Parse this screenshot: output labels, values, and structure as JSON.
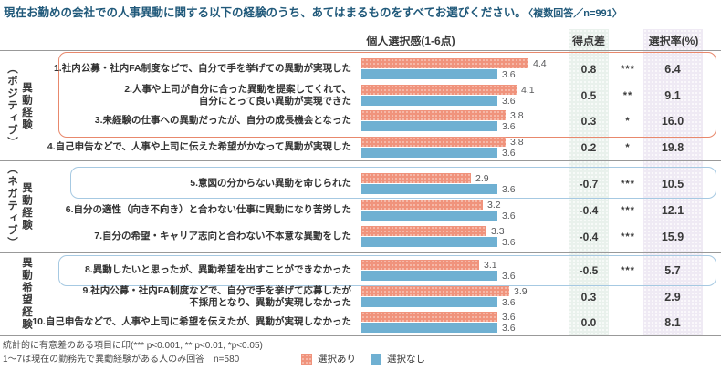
{
  "title": {
    "main": "現在お勤めの会社での人事異動に関する以下の経験のうち、あてはまるものをすべてお選びください。",
    "note": "〈複数回答／n=991〉"
  },
  "headers": {
    "score": "個人選択感(1-6点)",
    "diff": "得点差",
    "rate": "選択率(%)"
  },
  "groups": [
    {
      "name": "異動経験",
      "qualifier": "（ポジティブ）"
    },
    {
      "name": "異動経験",
      "qualifier": "（ネガティブ）"
    },
    {
      "name": "異動希望経験",
      "qualifier": ""
    }
  ],
  "rows": [
    {
      "label": "1.社内公募・社内FA制度などで、自分で手を挙げての異動が実現した",
      "selected": 4.4,
      "not_selected": 3.6,
      "diff": "0.8",
      "stars": "***",
      "rate": "6.4"
    },
    {
      "label": "2.人事や上司が自分に合った異動を提案してくれて、",
      "label2": "自分にとって良い異動が実現できた",
      "selected": 4.1,
      "not_selected": 3.6,
      "diff": "0.5",
      "stars": "**",
      "rate": "9.1"
    },
    {
      "label": "3.未経験の仕事への異動だったが、自分の成長機会となった",
      "selected": 3.8,
      "not_selected": 3.6,
      "diff": "0.3",
      "stars": "*",
      "rate": "16.0"
    },
    {
      "label": "4.自己申告などで、人事や上司に伝えた希望がかなって異動が実現した",
      "selected": 3.8,
      "not_selected": 3.6,
      "diff": "0.2",
      "stars": "*",
      "rate": "19.8"
    },
    {
      "label": "5.意図の分からない異動を命じられた",
      "selected": 2.9,
      "not_selected": 3.6,
      "diff": "-0.7",
      "stars": "***",
      "rate": "10.5"
    },
    {
      "label": "6.自分の適性（向き不向き）と合わない仕事に異動になり苦労した",
      "selected": 3.2,
      "not_selected": 3.6,
      "diff": "-0.4",
      "stars": "***",
      "rate": "12.1"
    },
    {
      "label": "7.自分の希望・キャリア志向と合わない不本意な異動をした",
      "selected": 3.3,
      "not_selected": 3.6,
      "diff": "-0.4",
      "stars": "***",
      "rate": "15.9"
    },
    {
      "label": "8.異動したいと思ったが、異動希望を出すことができなかった",
      "selected": 3.1,
      "not_selected": 3.6,
      "diff": "-0.5",
      "stars": "***",
      "rate": "5.7"
    },
    {
      "label": "9.社内公募・社内FA制度などで、自分で手を挙げて応募したが",
      "label2": "不採用となり、異動が実現しなかった",
      "selected": 3.9,
      "not_selected": 3.6,
      "diff": "0.3",
      "stars": "",
      "rate": "2.9"
    },
    {
      "label": "10.自己申告などで、人事や上司に希望を伝えたが、異動が実現しなかった",
      "selected": 3.6,
      "not_selected": 3.6,
      "diff": "0.0",
      "stars": "",
      "rate": "8.1"
    }
  ],
  "legend": {
    "selected": "選択あり",
    "not_selected": "選択なし"
  },
  "footnotes": {
    "line1": "統計的に有意差のある項目に印(*** p<0.001, ** p<0.01, *p<0.05)",
    "line2": "1～7は現在の勤務先で異動経験がある人のみ回答　n=580"
  },
  "colors": {
    "title": "#20597a",
    "bar_selected": "#f0937c",
    "bar_not_selected": "#6fb0d2",
    "diff_column_band": "#e9f1ec",
    "rate_column_band": "#efeaf4",
    "positive_box_border": "#e8886c",
    "negative_box_border": "#a6c9e2",
    "separator": "#999999"
  },
  "chart_data": {
    "type": "bar",
    "orientation": "horizontal",
    "title": "個人選択感(1-6点)",
    "score_scale": "1-6",
    "categories": [
      "1.社内公募・社内FA制度などで、自分で手を挙げての異動が実現した",
      "2.人事や上司が自分に合った異動を提案してくれて、自分にとって良い異動が実現できた",
      "3.未経験の仕事への異動だったが、自分の成長機会となった",
      "4.自己申告などで、人事や上司に伝えた希望がかなって異動が実現した",
      "5.意図の分からない異動を命じられた",
      "6.自分の適性（向き不向き）と合わない仕事に異動になり苦労した",
      "7.自分の希望・キャリア志向と合わない不本意な異動をした",
      "8.異動したいと思ったが、異動希望を出すことができなかった",
      "9.社内公募・社内FA制度などで、自分で手を挙げて応募したが不採用となり、異動が実現しなかった",
      "10.自己申告などで、人事や上司に希望を伝えたが、異動が実現しなかった"
    ],
    "series": [
      {
        "name": "選択あり",
        "values": [
          4.4,
          4.1,
          3.8,
          3.8,
          2.9,
          3.2,
          3.3,
          3.1,
          3.9,
          3.6
        ]
      },
      {
        "name": "選択なし",
        "values": [
          3.6,
          3.6,
          3.6,
          3.6,
          3.6,
          3.6,
          3.6,
          3.6,
          3.6,
          3.6
        ]
      }
    ],
    "score_diff": [
      0.8,
      0.5,
      0.3,
      0.2,
      -0.7,
      -0.4,
      -0.4,
      -0.5,
      0.3,
      0.0
    ],
    "significance": [
      "***",
      "**",
      "*",
      "*",
      "***",
      "***",
      "***",
      "***",
      "",
      ""
    ],
    "selection_rate_pct": [
      6.4,
      9.1,
      16.0,
      19.8,
      10.5,
      12.1,
      15.9,
      5.7,
      2.9,
      8.1
    ],
    "groups": [
      {
        "label": "異動経験（ポジティブ）",
        "row_numbers": [
          1,
          2,
          3,
          4
        ],
        "boxed_rows": [
          1,
          2,
          3
        ]
      },
      {
        "label": "異動経験（ネガティブ）",
        "row_numbers": [
          5,
          6,
          7
        ],
        "boxed_rows": [
          5
        ]
      },
      {
        "label": "異動希望経験",
        "row_numbers": [
          8,
          9,
          10
        ],
        "boxed_rows": [
          8
        ]
      }
    ],
    "legend_position": "bottom",
    "grid": false
  }
}
